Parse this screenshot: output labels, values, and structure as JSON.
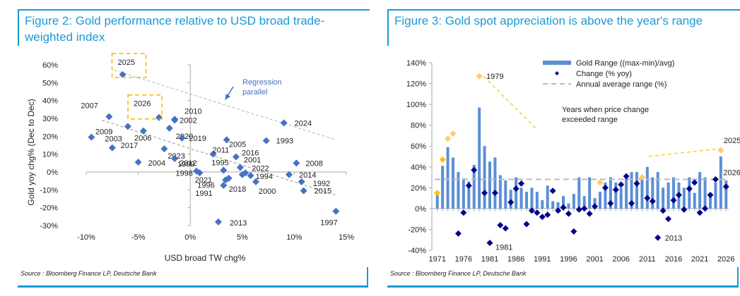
{
  "figure2": {
    "title": "Figure 2: Gold performance relative to USD broad trade-weighted index",
    "source": "Source : Bloomberg Finance LP, Deutsche Bank"
  },
  "figure3": {
    "title": "Figure 3: Gold spot appreciation is above the year's range",
    "source": "Source : Bloomberg Finance LP, Deutsche Bank"
  },
  "chart_data": [
    {
      "type": "scatter",
      "title": "Figure 2: Gold performance relative to USD broad trade-weighted index",
      "xlabel": "USD broad TW chg%",
      "ylabel": "Gold yoy chg% (Dec to Dec)",
      "xlim": [
        -10,
        15
      ],
      "ylim": [
        -30,
        60
      ],
      "xticks": [
        "-10%",
        "-5%",
        "0%",
        "5%",
        "10%",
        "15%"
      ],
      "yticks": [
        "-30%",
        "-20%",
        "-10%",
        "0%",
        "10%",
        "20%",
        "30%",
        "40%",
        "50%",
        "60%"
      ],
      "grid": false,
      "color": "#4472c4",
      "points": [
        {
          "label": "2025",
          "x": -6.5,
          "y": 54.5,
          "highlight": true
        },
        {
          "label": "2026",
          "x": -3.0,
          "y": 30.5,
          "highlight": true
        },
        {
          "label": "2007",
          "x": -7.8,
          "y": 31.0
        },
        {
          "label": "2010",
          "x": -1.5,
          "y": 29.5
        },
        {
          "label": "2002",
          "x": -1.5,
          "y": 29.0
        },
        {
          "label": "2009",
          "x": -6.0,
          "y": 25.5
        },
        {
          "label": "2020",
          "x": -2.0,
          "y": 24.5
        },
        {
          "label": "2006",
          "x": -4.5,
          "y": 23.0
        },
        {
          "label": "2003",
          "x": -9.5,
          "y": 19.5
        },
        {
          "label": "2019",
          "x": -0.8,
          "y": 19.0
        },
        {
          "label": "2017",
          "x": -7.5,
          "y": 13.5
        },
        {
          "label": "2023",
          "x": -2.5,
          "y": 13.0
        },
        {
          "label": "2004",
          "x": -5.0,
          "y": 5.5
        },
        {
          "label": "2012",
          "x": -1.5,
          "y": 7.5
        },
        {
          "label": "2024",
          "x": 9.0,
          "y": 27.5
        },
        {
          "label": "2005",
          "x": 3.5,
          "y": 18.0
        },
        {
          "label": "1993",
          "x": 7.3,
          "y": 17.5
        },
        {
          "label": "2011",
          "x": 2.2,
          "y": 10.0
        },
        {
          "label": "2016",
          "x": 4.4,
          "y": 8.5
        },
        {
          "label": "1995",
          "x": 3.2,
          "y": 1.0
        },
        {
          "label": "2001",
          "x": 4.8,
          "y": 2.5
        },
        {
          "label": "2022",
          "x": 5.3,
          "y": -0.5
        },
        {
          "label": "1999",
          "x": 0.6,
          "y": 0.5
        },
        {
          "label": "1998",
          "x": 0.9,
          "y": -0.5
        },
        {
          "label": "2021",
          "x": 3.7,
          "y": -3.5
        },
        {
          "label": "1996",
          "x": 3.4,
          "y": -4.5
        },
        {
          "label": "1991",
          "x": 3.2,
          "y": -7.5
        },
        {
          "label": "2018",
          "x": 5.0,
          "y": -1.5
        },
        {
          "label": "1994",
          "x": 5.8,
          "y": -2.0
        },
        {
          "label": "2000",
          "x": 6.3,
          "y": -5.5
        },
        {
          "label": "2008",
          "x": 10.2,
          "y": 5.0
        },
        {
          "label": "2014",
          "x": 9.5,
          "y": -1.5
        },
        {
          "label": "1992",
          "x": 10.7,
          "y": -5.5
        },
        {
          "label": "2015",
          "x": 10.9,
          "y": -10.5
        },
        {
          "label": "1997",
          "x": 14.0,
          "y": -22.0
        },
        {
          "label": "2013",
          "x": 2.7,
          "y": -28.0
        }
      ],
      "lines": [
        {
          "name": "Regression",
          "from": [
            -8.5,
            29
          ],
          "to": [
            14,
            -13
          ],
          "color": "#999999"
        },
        {
          "name": "Regression parallel",
          "from": [
            -7.3,
            57
          ],
          "to": [
            14,
            18
          ],
          "color": "#9ab7e4"
        }
      ],
      "annotations": [
        "Regression parallel"
      ]
    },
    {
      "type": "bar",
      "title": "Figure 3: Gold spot appreciation is above the year's range",
      "xlabel": "",
      "ylabel": "",
      "ylim": [
        -40,
        140
      ],
      "yticks": [
        "-40%",
        "-20%",
        "0%",
        "20%",
        "40%",
        "60%",
        "80%",
        "100%",
        "120%",
        "140%"
      ],
      "xticks": [
        "1971",
        "1976",
        "1981",
        "1986",
        "1991",
        "1996",
        "2001",
        "2006",
        "2011",
        "2016",
        "2021",
        "2026"
      ],
      "legend": [
        "Gold Range ((max-min)/avg)",
        "Change (% yoy)",
        "Annual average range (%)"
      ],
      "legend_position": "top-right",
      "categories": [
        1971,
        1972,
        1973,
        1974,
        1975,
        1976,
        1977,
        1978,
        1979,
        1980,
        1981,
        1982,
        1983,
        1984,
        1985,
        1986,
        1987,
        1988,
        1989,
        1990,
        1991,
        1992,
        1993,
        1994,
        1995,
        1996,
        1997,
        1998,
        1999,
        2000,
        2001,
        2002,
        2003,
        2004,
        2005,
        2006,
        2007,
        2008,
        2009,
        2010,
        2011,
        2012,
        2013,
        2014,
        2015,
        2016,
        2017,
        2018,
        2019,
        2020,
        2021,
        2022,
        2023,
        2024,
        2025,
        2026
      ],
      "series": [
        {
          "name": "Gold Range ((max-min)/avg)",
          "color": "#5b8fd6",
          "values": [
            14,
            41,
            59,
            49,
            35,
            29,
            26,
            42,
            97,
            60,
            45,
            49,
            32,
            27,
            18,
            30,
            20,
            16,
            20,
            16,
            8,
            22,
            7,
            6,
            12,
            5,
            14,
            30,
            12,
            30,
            10,
            16,
            25,
            30,
            25,
            20,
            30,
            35,
            35,
            30,
            40,
            30,
            35,
            20,
            25,
            30,
            25,
            20,
            30,
            15,
            35,
            30,
            15,
            25,
            50,
            27
          ]
        },
        {
          "name": "Change (% yoy)",
          "color": "#00008b",
          "values": [
            15,
            47,
            67,
            72,
            -24,
            -4,
            22,
            37,
            127,
            15,
            -33,
            15,
            -16,
            -19,
            6,
            19,
            24,
            -15,
            -2,
            -4,
            -8,
            -6,
            17,
            -2,
            1,
            -5,
            -22,
            -1,
            0,
            -5,
            2,
            25,
            20,
            5,
            18,
            23,
            31,
            5,
            24,
            30,
            10,
            7,
            -28,
            -2,
            -10,
            8,
            13,
            -1,
            19,
            25,
            -4,
            0,
            13,
            28,
            56,
            21
          ]
        },
        {
          "name": "Annual average range (%)",
          "color": "#bbbbbb",
          "value": 28
        }
      ],
      "highlight_years": [
        1971,
        1972,
        1973,
        1974,
        1979,
        2002,
        2010,
        2025
      ],
      "highlight_color": "#ffc000",
      "annotations": [
        "1979",
        "1981",
        "2013",
        "2025",
        "2026",
        "Years when price change exceeded range"
      ]
    }
  ]
}
